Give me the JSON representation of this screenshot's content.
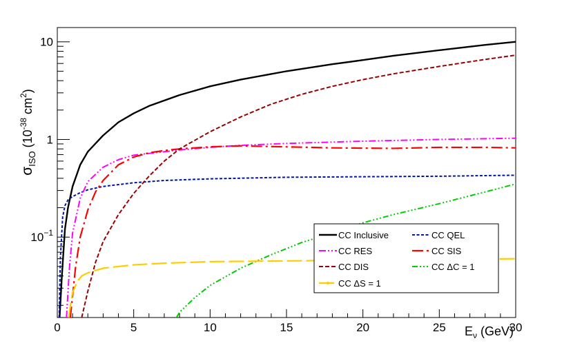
{
  "chart_data": {
    "type": "line",
    "xlabel_main": "E",
    "xlabel_sub": "ν",
    "xlabel_unit": " (GeV)",
    "ylabel_main": "σ",
    "ylabel_sub": "ISO",
    "ylabel_unit_pre": " (10",
    "ylabel_unit_exp": "-38",
    "ylabel_unit_mid": " cm",
    "ylabel_unit_exp2": "2",
    "ylabel_unit_post": ")",
    "xlim": [
      0,
      30
    ],
    "ylim": [
      0.015,
      14
    ],
    "yscale": "log",
    "grid": false,
    "legend_position": "bottom-right",
    "x_ticks": [
      "0",
      "5",
      "10",
      "15",
      "20",
      "25",
      "30"
    ],
    "y_ticks": [
      {
        "value": 10,
        "label": "10",
        "base": "",
        "exp": ""
      },
      {
        "value": 1,
        "label": "1",
        "base": "",
        "exp": ""
      },
      {
        "value": 0.1,
        "label": "",
        "base": "10",
        "exp": "−1"
      }
    ],
    "series": [
      {
        "name": "CC Inclusive",
        "color": "#000000",
        "dash": "",
        "width": 2.4,
        "points": [
          [
            0.15,
            0.015
          ],
          [
            0.3,
            0.04
          ],
          [
            0.5,
            0.12
          ],
          [
            0.7,
            0.2
          ],
          [
            1,
            0.33
          ],
          [
            1.5,
            0.55
          ],
          [
            2,
            0.75
          ],
          [
            3,
            1.1
          ],
          [
            4,
            1.5
          ],
          [
            5,
            1.85
          ],
          [
            6,
            2.2
          ],
          [
            8,
            2.85
          ],
          [
            10,
            3.5
          ],
          [
            12,
            4.1
          ],
          [
            15,
            5.0
          ],
          [
            18,
            5.9
          ],
          [
            20,
            6.5
          ],
          [
            22,
            7.2
          ],
          [
            25,
            8.2
          ],
          [
            28,
            9.3
          ],
          [
            30,
            10.0
          ]
        ]
      },
      {
        "name": "CC QEL",
        "color": "#00169e",
        "dash": "4 2.5",
        "width": 2,
        "points": [
          [
            0.12,
            0.015
          ],
          [
            0.2,
            0.06
          ],
          [
            0.35,
            0.16
          ],
          [
            0.5,
            0.21
          ],
          [
            0.7,
            0.24
          ],
          [
            1,
            0.26
          ],
          [
            1.5,
            0.285
          ],
          [
            2,
            0.305
          ],
          [
            3,
            0.33
          ],
          [
            5,
            0.36
          ],
          [
            7,
            0.38
          ],
          [
            10,
            0.395
          ],
          [
            15,
            0.41
          ],
          [
            20,
            0.415
          ],
          [
            25,
            0.42
          ],
          [
            30,
            0.43
          ]
        ]
      },
      {
        "name": "CC RES",
        "color": "#ff00ff",
        "dash": "10 3 2 3 2 3",
        "width": 2,
        "points": [
          [
            0.6,
            0.015
          ],
          [
            0.8,
            0.05
          ],
          [
            1,
            0.11
          ],
          [
            1.5,
            0.25
          ],
          [
            2,
            0.37
          ],
          [
            3,
            0.52
          ],
          [
            4,
            0.62
          ],
          [
            5,
            0.69
          ],
          [
            6,
            0.72
          ],
          [
            8,
            0.78
          ],
          [
            10,
            0.83
          ],
          [
            12,
            0.87
          ],
          [
            15,
            0.91
          ],
          [
            20,
            0.96
          ],
          [
            25,
            1.0
          ],
          [
            30,
            1.03
          ]
        ]
      },
      {
        "name": "CC SIS",
        "color": "#ff0000",
        "dash": "16 5 3 5",
        "width": 2.2,
        "points": [
          [
            0.85,
            0.015
          ],
          [
            1,
            0.025
          ],
          [
            1.2,
            0.05
          ],
          [
            1.5,
            0.1
          ],
          [
            2,
            0.19
          ],
          [
            2.5,
            0.29
          ],
          [
            3,
            0.38
          ],
          [
            4,
            0.55
          ],
          [
            5,
            0.66
          ],
          [
            6,
            0.73
          ],
          [
            7,
            0.77
          ],
          [
            8,
            0.8
          ],
          [
            10,
            0.84
          ],
          [
            12,
            0.86
          ],
          [
            15,
            0.84
          ],
          [
            18,
            0.82
          ],
          [
            22,
            0.81
          ],
          [
            25,
            0.83
          ],
          [
            28,
            0.83
          ],
          [
            30,
            0.82
          ]
        ]
      },
      {
        "name": "CC DIS",
        "color": "#990000",
        "dash": "6 3",
        "width": 2,
        "points": [
          [
            1.6,
            0.015
          ],
          [
            2,
            0.028
          ],
          [
            2.5,
            0.055
          ],
          [
            3,
            0.09
          ],
          [
            4,
            0.17
          ],
          [
            5,
            0.28
          ],
          [
            6,
            0.42
          ],
          [
            7,
            0.6
          ],
          [
            8,
            0.8
          ],
          [
            10,
            1.2
          ],
          [
            12,
            1.7
          ],
          [
            14,
            2.3
          ],
          [
            16,
            2.9
          ],
          [
            18,
            3.5
          ],
          [
            20,
            4.1
          ],
          [
            22,
            4.7
          ],
          [
            25,
            5.6
          ],
          [
            28,
            6.6
          ],
          [
            30,
            7.3
          ]
        ]
      },
      {
        "name": "CC ΔC = 1",
        "color": "#00cc00",
        "dash": "8 3 2 3 2 3 2 3",
        "width": 2,
        "points": [
          [
            7.8,
            0.015
          ],
          [
            8,
            0.017
          ],
          [
            9,
            0.024
          ],
          [
            10,
            0.032
          ],
          [
            12,
            0.048
          ],
          [
            14,
            0.066
          ],
          [
            16,
            0.088
          ],
          [
            18,
            0.11
          ],
          [
            20,
            0.14
          ],
          [
            22,
            0.17
          ],
          [
            25,
            0.22
          ],
          [
            28,
            0.29
          ],
          [
            30,
            0.35
          ]
        ]
      },
      {
        "name": "CC ΔS = 1",
        "color": "#ffcc00",
        "dash": "22 6",
        "width": 2.2,
        "points": [
          [
            0.75,
            0.015
          ],
          [
            0.9,
            0.022
          ],
          [
            1,
            0.027
          ],
          [
            1.3,
            0.035
          ],
          [
            1.6,
            0.04
          ],
          [
            2,
            0.043
          ],
          [
            3,
            0.048
          ],
          [
            5,
            0.052
          ],
          [
            7,
            0.054
          ],
          [
            10,
            0.056
          ],
          [
            15,
            0.057
          ],
          [
            20,
            0.058
          ],
          [
            25,
            0.059
          ],
          [
            30,
            0.06
          ]
        ]
      }
    ],
    "legend_order": [
      0,
      1,
      2,
      3,
      4,
      5,
      6
    ]
  }
}
